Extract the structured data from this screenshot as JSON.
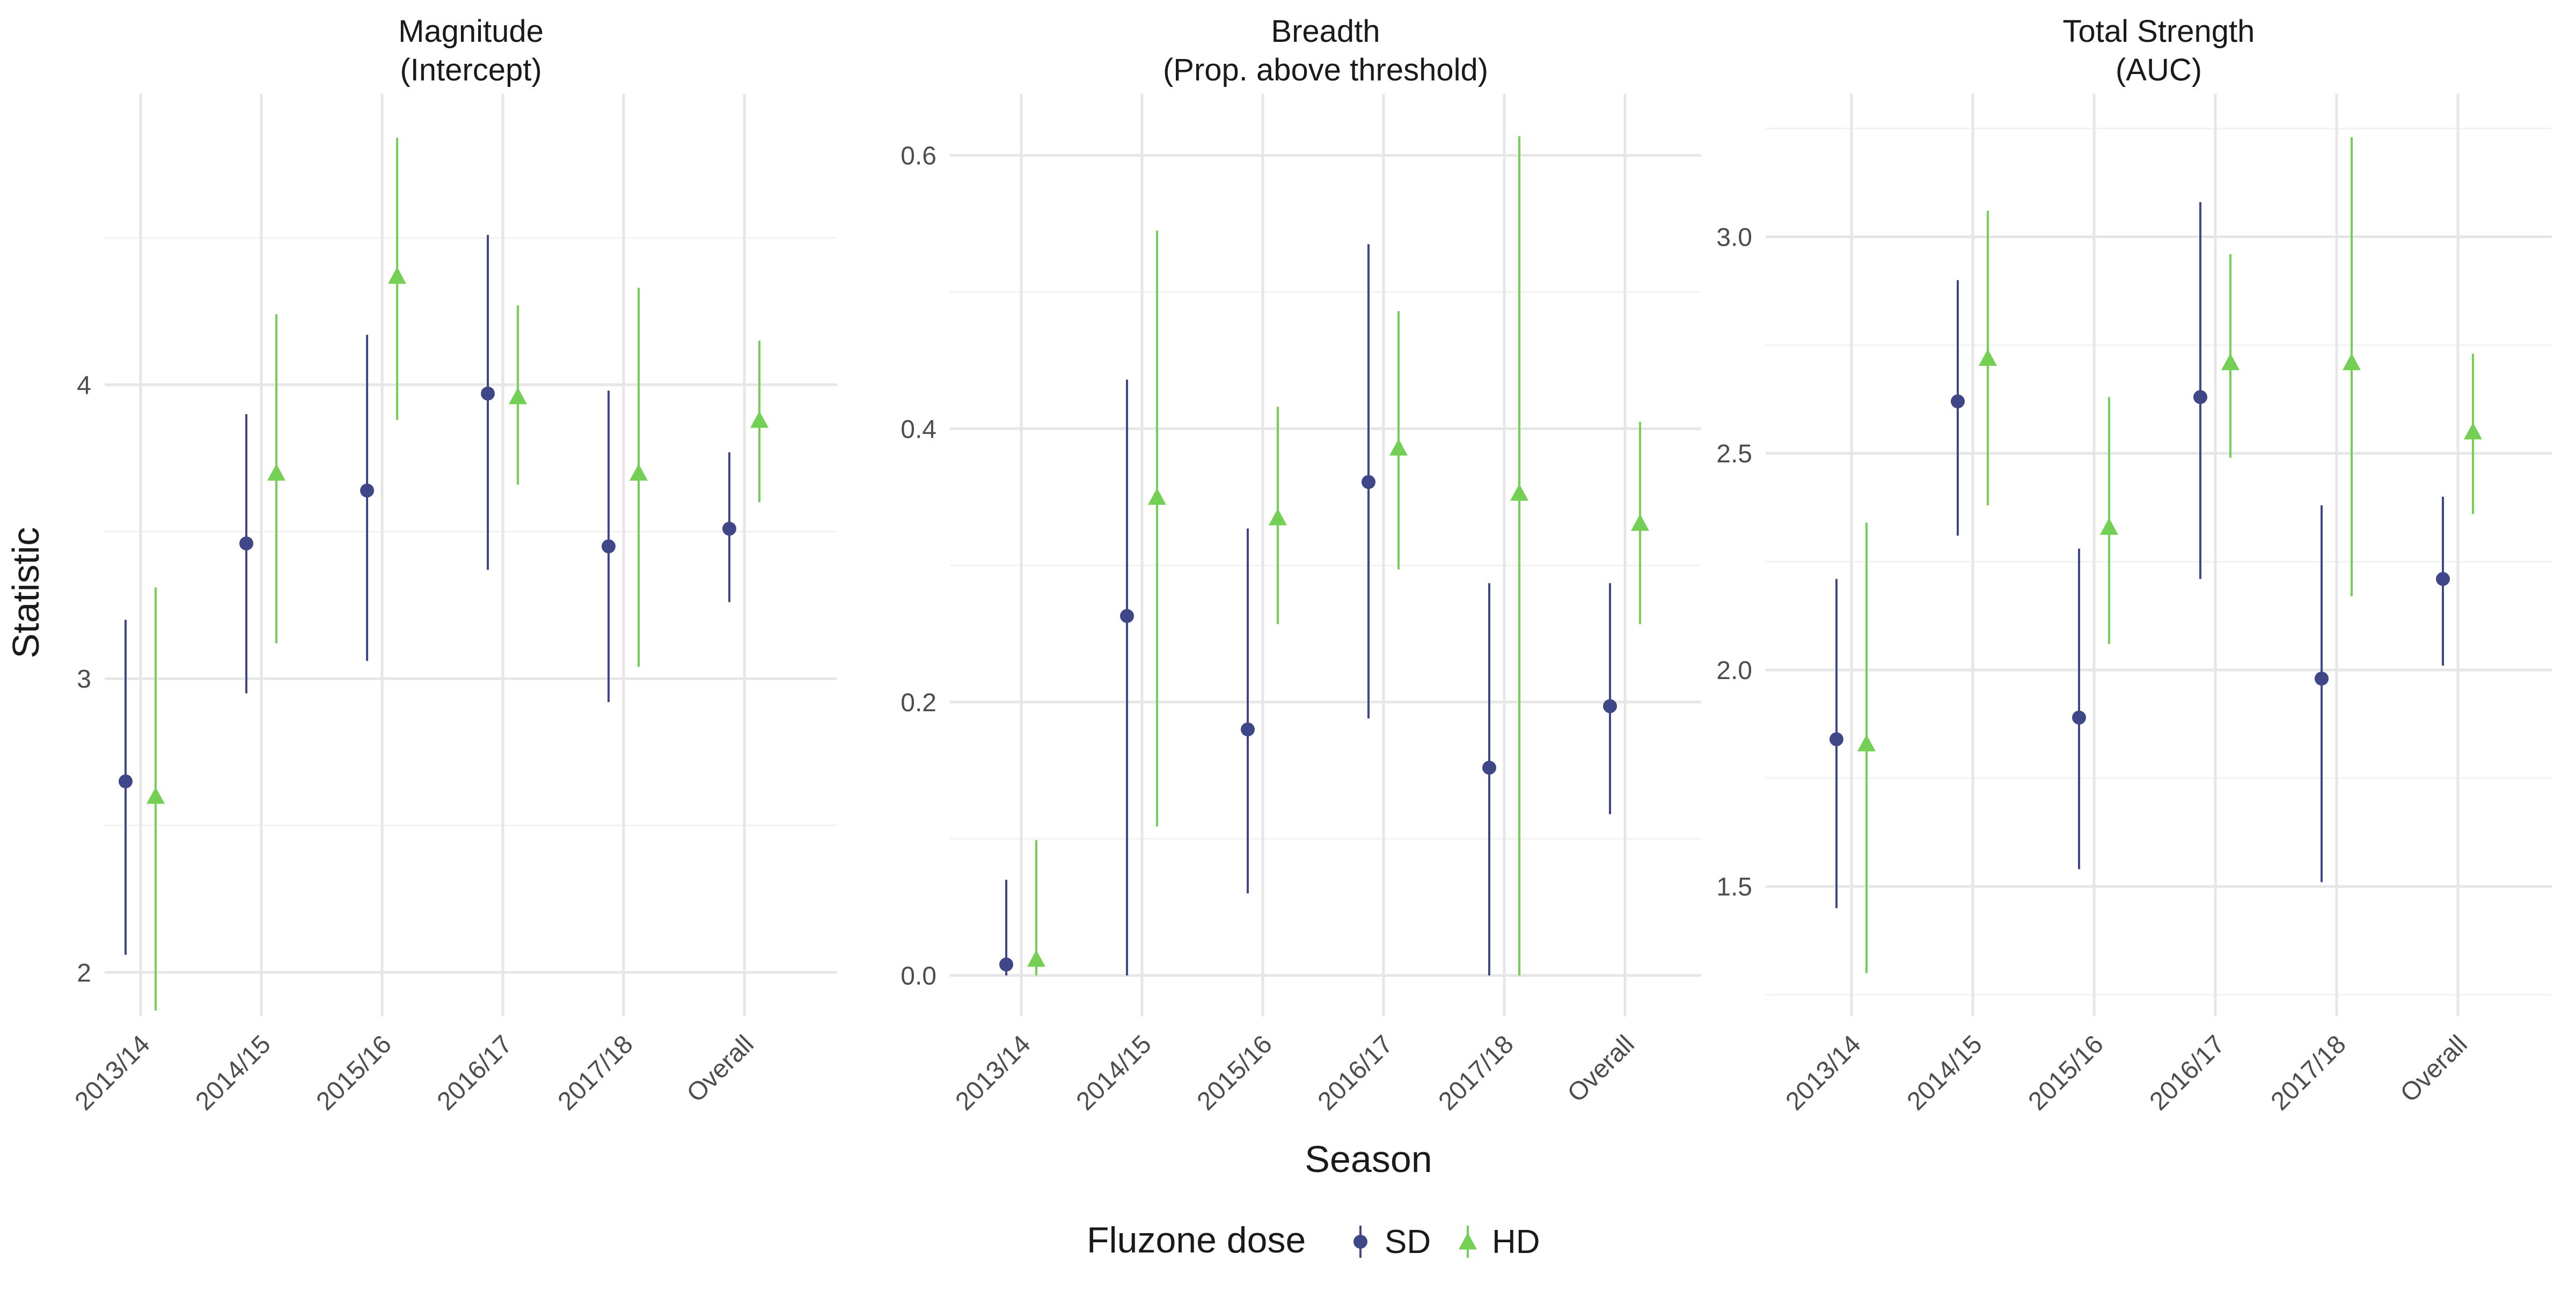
{
  "chart_data": {
    "type": "scatter",
    "subtype": "point-range (estimate with interval), faceted",
    "ylabel": "Statistic",
    "xlabel": "Season",
    "legend": {
      "title": "Fluzone dose",
      "position": "bottom",
      "entries": [
        {
          "name": "SD",
          "color": "#404788",
          "shape": "circle"
        },
        {
          "name": "HD",
          "color": "#73D055",
          "shape": "triangle"
        }
      ]
    },
    "categories": [
      "2013/14",
      "2014/15",
      "2015/16",
      "2016/17",
      "2017/18",
      "Overall"
    ],
    "grid": true,
    "panels": [
      {
        "title_line1": "Magnitude",
        "title_line2": "(Intercept)",
        "ylim": [
          1.85,
          4.99
        ],
        "yticks": [
          2,
          3,
          4
        ],
        "yticklabels": [
          "2",
          "3",
          "4"
        ],
        "minor_yticks": [
          2.5,
          3.5,
          4.5
        ],
        "series": [
          {
            "name": "SD",
            "estimate": [
              2.65,
              3.46,
              3.64,
              3.97,
              3.45,
              3.51
            ],
            "lower": [
              2.06,
              2.95,
              3.06,
              3.37,
              2.92,
              3.26
            ],
            "upper": [
              3.2,
              3.9,
              4.17,
              4.51,
              3.98,
              3.77
            ]
          },
          {
            "name": "HD",
            "estimate": [
              2.6,
              3.7,
              4.37,
              3.96,
              3.7,
              3.88
            ],
            "lower": [
              1.87,
              3.12,
              3.88,
              3.66,
              3.04,
              3.6
            ],
            "upper": [
              3.31,
              4.24,
              4.84,
              4.27,
              4.33,
              4.15
            ]
          }
        ]
      },
      {
        "title_line1": "Breadth",
        "title_line2": "(Prop. above threshold)",
        "ylim": [
          -0.03,
          0.645
        ],
        "yticks": [
          0.0,
          0.2,
          0.4,
          0.6
        ],
        "yticklabels": [
          "0.0",
          "0.2",
          "0.4",
          "0.6"
        ],
        "minor_yticks": [
          0.1,
          0.3,
          0.5
        ],
        "series": [
          {
            "name": "SD",
            "estimate": [
              0.008,
              0.263,
              0.18,
              0.361,
              0.152,
              0.197
            ],
            "lower": [
              0.0,
              0.0,
              0.06,
              0.188,
              0.0,
              0.118
            ],
            "upper": [
              0.07,
              0.436,
              0.327,
              0.535,
              0.287,
              0.287
            ]
          },
          {
            "name": "HD",
            "estimate": [
              0.012,
              0.35,
              0.335,
              0.386,
              0.353,
              0.331
            ],
            "lower": [
              0.0,
              0.109,
              0.257,
              0.297,
              0.0,
              0.257
            ],
            "upper": [
              0.099,
              0.545,
              0.416,
              0.486,
              0.614,
              0.405
            ]
          }
        ]
      },
      {
        "title_line1": "Total Strength",
        "title_line2": "(AUC)",
        "ylim": [
          1.2,
          3.33
        ],
        "yticks": [
          1.5,
          2.0,
          2.5,
          3.0
        ],
        "yticklabels": [
          "1.5",
          "2.0",
          "2.5",
          "3.0"
        ],
        "minor_yticks": [
          1.25,
          1.75,
          2.25,
          2.75,
          3.25
        ],
        "series": [
          {
            "name": "SD",
            "estimate": [
              1.84,
              2.62,
              1.89,
              2.63,
              1.98,
              2.21
            ],
            "lower": [
              1.45,
              2.31,
              1.54,
              2.21,
              1.51,
              2.01
            ],
            "upper": [
              2.21,
              2.9,
              2.28,
              3.08,
              2.38,
              2.4
            ]
          },
          {
            "name": "HD",
            "estimate": [
              1.83,
              2.72,
              2.33,
              2.71,
              2.71,
              2.55
            ],
            "lower": [
              1.3,
              2.38,
              2.06,
              2.49,
              2.17,
              2.36
            ],
            "upper": [
              2.34,
              3.06,
              2.63,
              2.96,
              3.23,
              2.73
            ]
          }
        ]
      }
    ]
  }
}
